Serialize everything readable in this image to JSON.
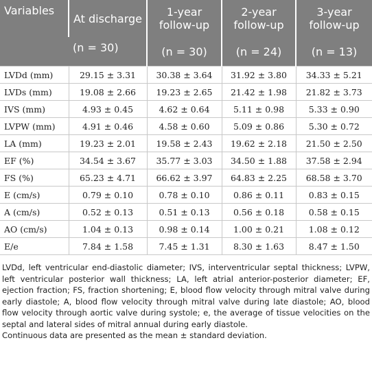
{
  "table": {
    "header": [
      "Variables",
      "At discharge",
      "1-year follow-up",
      "2-year follow-up",
      "3-year follow-up"
    ],
    "counts": [
      "(n = 30)",
      "(n = 30)",
      "(n = 24)",
      "(n = 13)"
    ],
    "rows": [
      [
        "LVDd (mm)",
        "29.15 ± 3.31",
        "30.38 ± 3.64",
        "31.92 ± 3.80",
        "34.33 ± 5.21"
      ],
      [
        "LVDs (mm)",
        "19.08 ± 2.66",
        "19.23 ± 2.65",
        "21.42 ± 1.98",
        "21.82 ± 3.73"
      ],
      [
        "IVS (mm)",
        "4.93 ± 0.45",
        "4.62 ± 0.64",
        "5.11 ± 0.98",
        "5.33 ± 0.90"
      ],
      [
        "LVPW (mm)",
        "4.91 ± 0.46",
        "4.58 ± 0.60",
        "5.09 ± 0.86",
        "5.30 ± 0.72"
      ],
      [
        "LA (mm)",
        "19.23 ± 2.01",
        "19.58 ± 2.43",
        "19.62 ± 2.18",
        "21.50 ± 2.50"
      ],
      [
        "EF (%)",
        "34.54 ± 3.67",
        "35.77 ± 3.03",
        "34.50 ± 1.88",
        "37.58 ± 2.94"
      ],
      [
        "FS (%)",
        "65.23 ± 4.71",
        "66.62 ± 3.97",
        "64.83 ± 2.25",
        "68.58 ± 3.70"
      ],
      [
        "E (cm/s)",
        "0.79 ± 0.10",
        "0.78 ± 0.10",
        "0.86 ± 0.11",
        "0.83 ± 0.15"
      ],
      [
        "A (cm/s)",
        "0.52 ± 0.13",
        "0.51 ± 0.13",
        "0.56 ± 0.18",
        "0.58 ± 0.15"
      ],
      [
        "AO (cm/s)",
        "1.04 ± 0.13",
        "0.98 ± 0.14",
        "1.00 ± 0.21",
        "1.08 ± 0.12"
      ],
      [
        "E/e",
        "7.84 ± 1.58",
        "7.45 ± 1.31",
        "8.30 ± 1.63",
        "8.47 ± 1.50"
      ]
    ]
  },
  "footnotes": [
    "LVDd, left ventricular end-diastolic diameter; IVS, interventricular septal thickness; LVPW, left ventricular posterior wall thickness; LA, left atrial anterior-posterior diameter; EF, ejection fraction; FS, fraction shortening; E, blood flow velocity through mitral valve during early diastole; A, blood flow velocity through mitral valve during late diastole; AO, blood flow velocity through aortic valve during systole; e, the average of tissue velocities on the septal and lateral sides of mitral annual during early diastole.",
    "Continuous data are presented as the mean ± standard deviation."
  ]
}
